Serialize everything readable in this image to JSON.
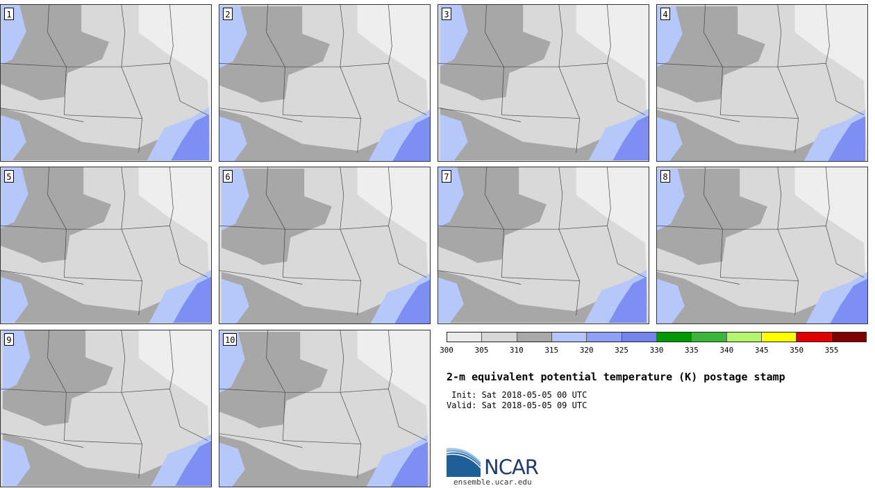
{
  "members": [
    "1",
    "2",
    "3",
    "4",
    "5",
    "6",
    "7",
    "8",
    "9",
    "10"
  ],
  "colorbar": {
    "colors": [
      "#ebebeb",
      "#d7d7d7",
      "#a9a9a9",
      "#b4c5fa",
      "#8ea1f5",
      "#7283ee",
      "#009a00",
      "#3ab73a",
      "#b4f56e",
      "#ffff00",
      "#e00000",
      "#800000"
    ],
    "tick_labels": [
      "300",
      "305",
      "310",
      "315",
      "320",
      "325",
      "330",
      "335",
      "340",
      "345",
      "350",
      "355"
    ]
  },
  "title": "2-m equivalent potential temperature (K) postage stamp",
  "init_text": " Init: Sat 2018-05-05 00 UTC",
  "valid_text": "Valid: Sat 2018-05-05 09 UTC",
  "logo": {
    "text": "NCAR",
    "site": "ensemble.ucar.edu"
  }
}
